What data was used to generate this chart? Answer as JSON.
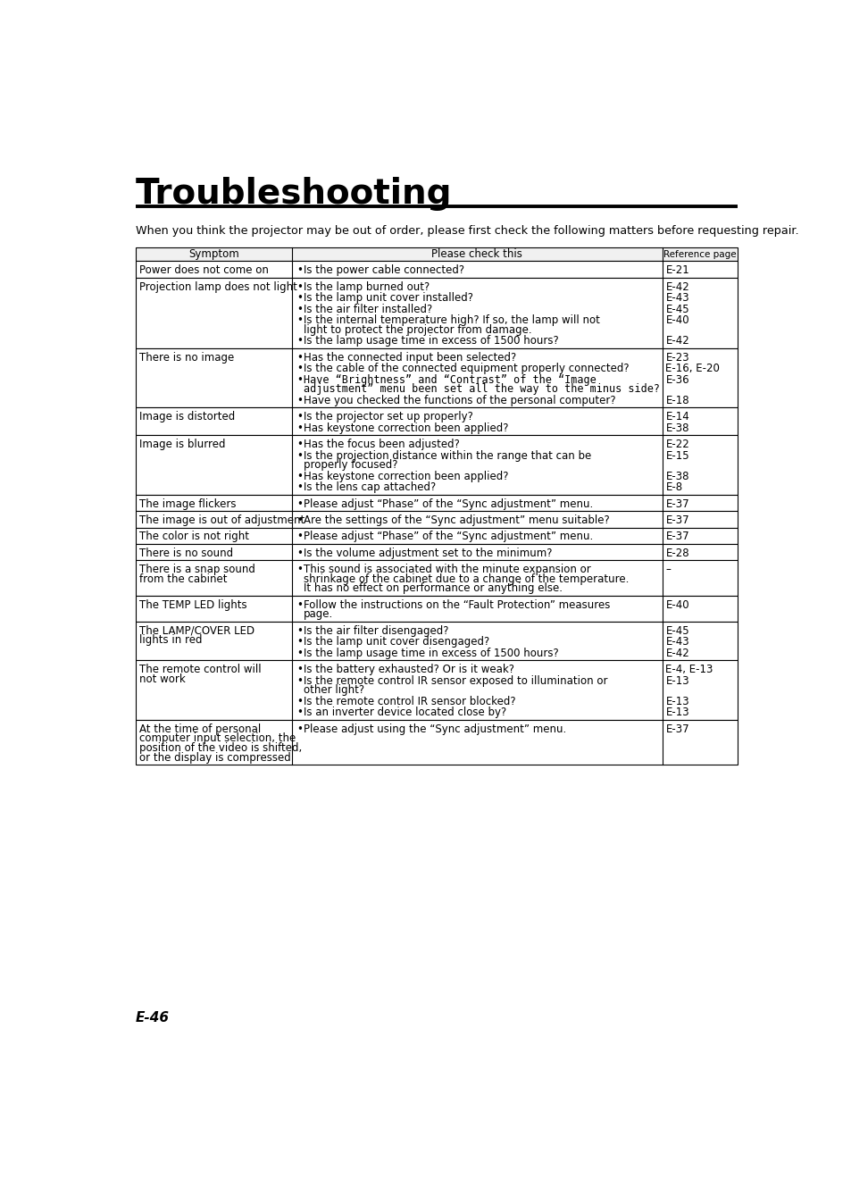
{
  "title": "Troubleshooting",
  "intro": "When you think the projector may be out of order, please first check the following matters before requesting repair.",
  "footer": "E-46",
  "col_headers": [
    "Symptom",
    "Please check this",
    "Reference page"
  ],
  "rows": [
    {
      "symptom": [
        "Power does not come on"
      ],
      "checks": [
        {
          "text": "Is the power cable connected?",
          "ref": "E-21",
          "mono": false
        }
      ]
    },
    {
      "symptom": [
        "Projection lamp does not light"
      ],
      "checks": [
        {
          "text": "Is the lamp burned out?",
          "ref": "E-42",
          "mono": false
        },
        {
          "text": "Is the lamp unit cover installed?",
          "ref": "E-43",
          "mono": false
        },
        {
          "text": "Is the air filter installed?",
          "ref": "E-45",
          "mono": false
        },
        {
          "text": "Is the internal temperature high? If so, the lamp will not",
          "ref": "E-40",
          "mono": false,
          "cont": "light to protect the projector from damage."
        },
        {
          "text": "Is the lamp usage time in excess of 1500 hours?",
          "ref": "E-42",
          "mono": false
        }
      ]
    },
    {
      "symptom": [
        "There is no image"
      ],
      "checks": [
        {
          "text": "Has the connected input been selected?",
          "ref": "E-23",
          "mono": false
        },
        {
          "text": "Is the cable of the connected equipment properly connected?",
          "ref": "E-16, E-20",
          "mono": false
        },
        {
          "text": "Have “Brightness” and “Contrast” of the “Image",
          "ref": "E-36",
          "mono": true,
          "cont": "adjustment” menu been set all the way to the minus side?"
        },
        {
          "text": "Have you checked the functions of the personal computer?",
          "ref": "E-18",
          "mono": false
        }
      ]
    },
    {
      "symptom": [
        "Image is distorted"
      ],
      "checks": [
        {
          "text": "Is the projector set up properly?",
          "ref": "E-14",
          "mono": false
        },
        {
          "text": "Has keystone correction been applied?",
          "ref": "E-38",
          "mono": false
        }
      ]
    },
    {
      "symptom": [
        "Image is blurred"
      ],
      "checks": [
        {
          "text": "Has the focus been adjusted?",
          "ref": "E-22",
          "mono": false
        },
        {
          "text": "Is the projection distance within the range that can be",
          "ref": "E-15",
          "mono": false,
          "cont": "properly focused?"
        },
        {
          "text": "Has keystone correction been applied?",
          "ref": "E-38",
          "mono": false
        },
        {
          "text": "Is the lens cap attached?",
          "ref": "E-8",
          "mono": false
        }
      ]
    },
    {
      "symptom": [
        "The image flickers"
      ],
      "checks": [
        {
          "text": "Please adjust “Phase” of the “Sync adjustment” menu.",
          "ref": "E-37",
          "mono": false
        }
      ]
    },
    {
      "symptom": [
        "The image is out of adjustment"
      ],
      "checks": [
        {
          "text": "Are the settings of the “Sync adjustment” menu suitable?",
          "ref": "E-37",
          "mono": false
        }
      ]
    },
    {
      "symptom": [
        "The color is not right"
      ],
      "checks": [
        {
          "text": "Please adjust “Phase” of the “Sync adjustment” menu.",
          "ref": "E-37",
          "mono": false
        }
      ]
    },
    {
      "symptom": [
        "There is no sound"
      ],
      "checks": [
        {
          "text": "Is the volume adjustment set to the minimum?",
          "ref": "E-28",
          "mono": false
        }
      ]
    },
    {
      "symptom": [
        "There is a snap sound",
        "from the cabinet"
      ],
      "checks": [
        {
          "text": "This sound is associated with the minute expansion or",
          "ref": "–",
          "mono": false,
          "cont2": [
            "shrinkage of the cabinet due to a change of the temperature.",
            "It has no effect on performance or anything else."
          ]
        }
      ]
    },
    {
      "symptom": [
        "The TEMP LED lights"
      ],
      "checks": [
        {
          "text": "Follow the instructions on the “Fault Protection” measures",
          "ref": "E-40",
          "mono": false,
          "cont": "page."
        }
      ]
    },
    {
      "symptom": [
        "The LAMP/COVER LED",
        "lights in red"
      ],
      "checks": [
        {
          "text": "Is the air filter disengaged?",
          "ref": "E-45",
          "mono": false
        },
        {
          "text": "Is the lamp unit cover disengaged?",
          "ref": "E-43",
          "mono": false
        },
        {
          "text": "Is the lamp usage time in excess of 1500 hours?",
          "ref": "E-42",
          "mono": false
        }
      ]
    },
    {
      "symptom": [
        "The remote control will",
        "not work"
      ],
      "checks": [
        {
          "text": "Is the battery exhausted? Or is it weak?",
          "ref": "E-4, E-13",
          "mono": false
        },
        {
          "text": "Is the remote control IR sensor exposed to illumination or",
          "ref": "E-13",
          "mono": false,
          "cont": "other light?"
        },
        {
          "text": "Is the remote control IR sensor blocked?",
          "ref": "E-13",
          "mono": false
        },
        {
          "text": "Is an inverter device located close by?",
          "ref": "E-13",
          "mono": false
        }
      ]
    },
    {
      "symptom": [
        "At the time of personal",
        "computer input selection, the",
        "position of the video is shifted,",
        "or the display is compressed"
      ],
      "checks": [
        {
          "text": "Please adjust using the “Sync adjustment” menu.",
          "ref": "E-37",
          "mono": false
        }
      ]
    }
  ],
  "background": "#ffffff",
  "text_color": "#000000"
}
